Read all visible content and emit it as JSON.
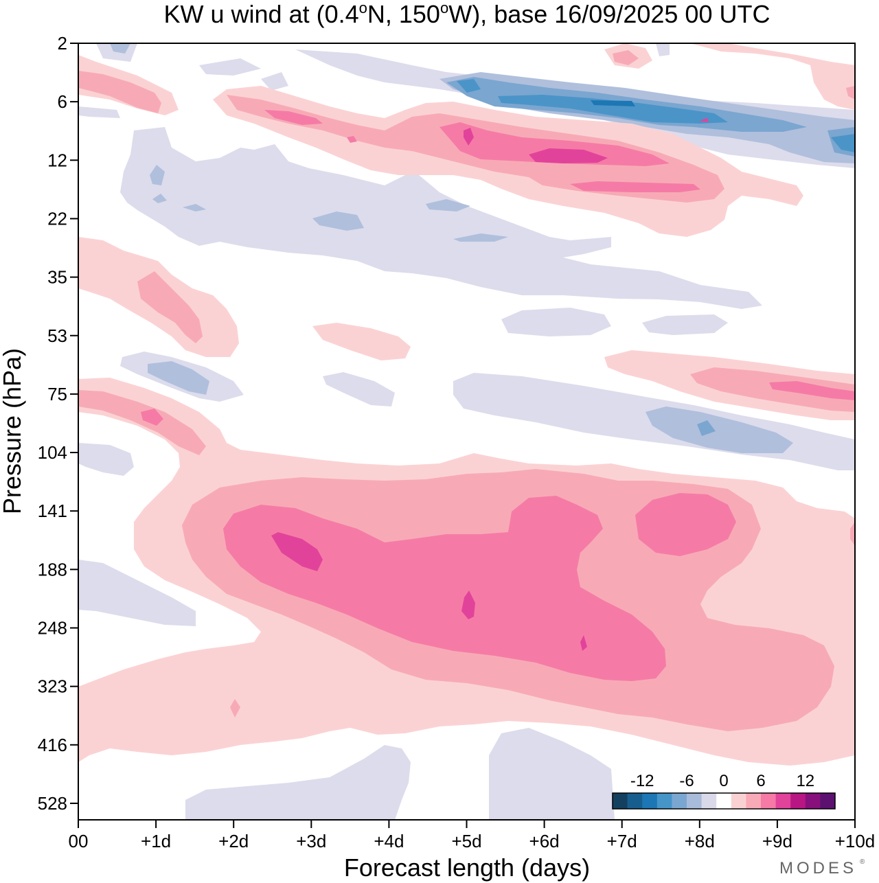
{
  "chart_data": {
    "type": "heatmap",
    "title": {
      "prefix": "KW u wind at (0.4",
      "deg1": "o",
      "mid": "N, 150",
      "deg2": "o",
      "suffix": "W),  base 16/09/2025  00 UTC"
    },
    "xlabel": "Forecast length (days)",
    "ylabel": "Pressure (hPa)",
    "xlim": [
      0,
      10
    ],
    "x_ticks": [
      {
        "v": 0,
        "label": "00"
      },
      {
        "v": 1,
        "label": "+1d"
      },
      {
        "v": 2,
        "label": "+2d"
      },
      {
        "v": 3,
        "label": "+3d"
      },
      {
        "v": 4,
        "label": "+4d"
      },
      {
        "v": 5,
        "label": "+5d"
      },
      {
        "v": 6,
        "label": "+6d"
      },
      {
        "v": 7,
        "label": "+7d"
      },
      {
        "v": 8,
        "label": "+8d"
      },
      {
        "v": 9,
        "label": "+9d"
      },
      {
        "v": 10,
        "label": "+10d"
      }
    ],
    "y_levels": [
      "2",
      "6",
      "12",
      "22",
      "35",
      "53",
      "75",
      "104",
      "141",
      "188",
      "248",
      "323",
      "416",
      "528"
    ],
    "colorbar": {
      "tick_labels": [
        {
          "v": -12,
          "label": "-12"
        },
        {
          "v": -6,
          "label": "-6"
        },
        {
          "v": 0,
          "label": "0"
        },
        {
          "v": 6,
          "label": "6"
        },
        {
          "v": 12,
          "label": "12"
        }
      ],
      "boundaries": [
        -16,
        -14,
        -12,
        -10,
        -8,
        -6,
        -4,
        -2,
        2,
        4,
        6,
        8,
        10,
        12,
        14,
        16
      ],
      "colors": [
        "#14405f",
        "#175e8f",
        "#1c77b4",
        "#4595c9",
        "#7aa7d1",
        "#a9bbda",
        "#d9d9ea",
        "#ffffff",
        "#fad1d2",
        "#f8aab6",
        "#f57aa6",
        "#e1429a",
        "#b81783",
        "#87107c",
        "#5c1171"
      ]
    },
    "field_sketch": [
      {
        "name": "negative anomaly upper stratosphere",
        "value": -10,
        "x": [
          3.4,
          10.0
        ],
        "level": [
          2,
          12
        ]
      },
      {
        "name": "positive anomaly 6-22 hPa band",
        "value": 10,
        "x": [
          1.8,
          8.3
        ],
        "level": [
          6,
          22
        ]
      },
      {
        "name": "positive anomaly 141-323 hPa",
        "value": 10,
        "x": [
          1.7,
          8.0
        ],
        "level": [
          141,
          323
        ]
      },
      {
        "name": "positive anomaly 75 hPa late",
        "value": 8,
        "x": [
          8.0,
          10.0
        ],
        "level": [
          53,
          90
        ]
      },
      {
        "name": "negative anomaly 75-104 hPa late",
        "value": -6,
        "x": [
          7.4,
          9.2
        ],
        "level": [
          75,
          104
        ]
      }
    ],
    "watermark": "MODES"
  }
}
